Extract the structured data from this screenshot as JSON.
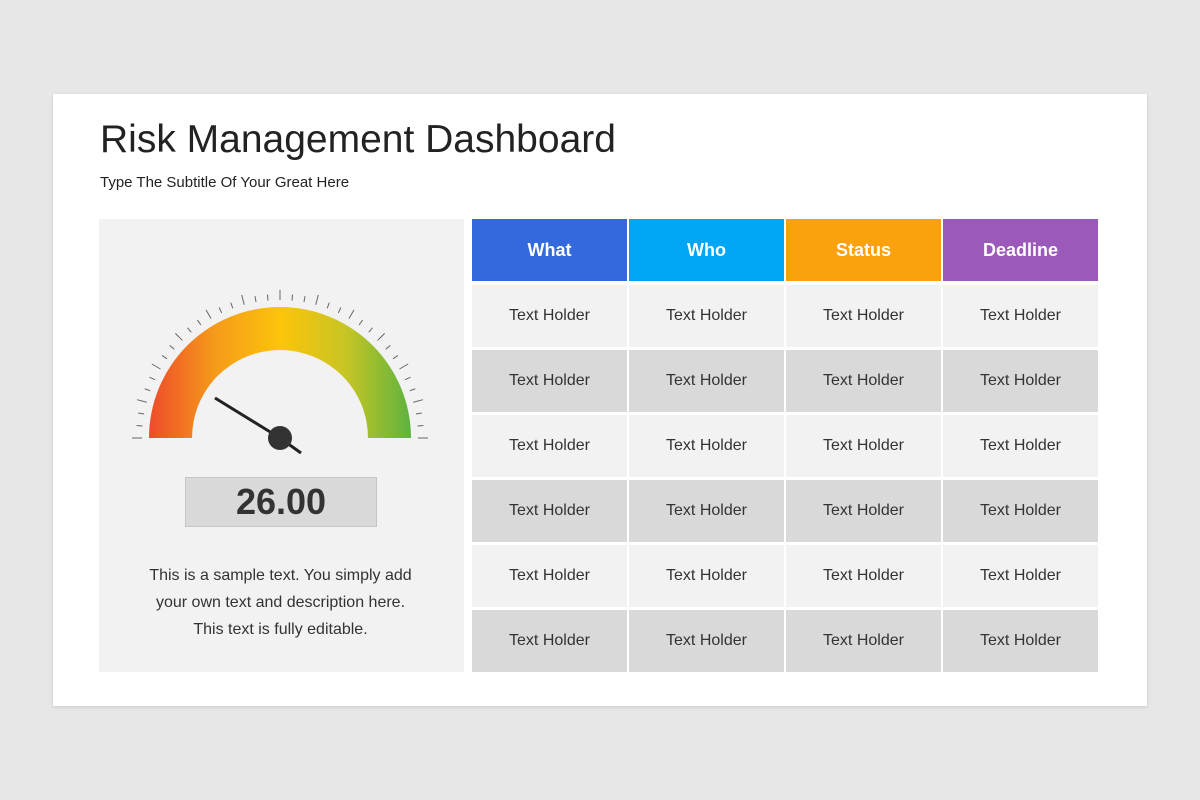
{
  "header": {
    "title": "Risk Management Dashboard",
    "subtitle": "Type The Subtitle Of Your Great Here"
  },
  "gauge": {
    "value": "26.00",
    "description": [
      "This is a sample text. You simply add",
      "your own text and description here.",
      "This text is fully editable."
    ]
  },
  "table": {
    "columns": [
      "What",
      "Who",
      "Status",
      "Deadline"
    ],
    "rows": [
      [
        "Text Holder",
        "Text Holder",
        "Text Holder",
        "Text Holder"
      ],
      [
        "Text Holder",
        "Text Holder",
        "Text Holder",
        "Text Holder"
      ],
      [
        "Text Holder",
        "Text Holder",
        "Text Holder",
        "Text Holder"
      ],
      [
        "Text Holder",
        "Text Holder",
        "Text Holder",
        "Text Holder"
      ],
      [
        "Text Holder",
        "Text Holder",
        "Text Holder",
        "Text Holder"
      ],
      [
        "Text Holder",
        "Text Holder",
        "Text Holder",
        "Text Holder"
      ]
    ]
  }
}
